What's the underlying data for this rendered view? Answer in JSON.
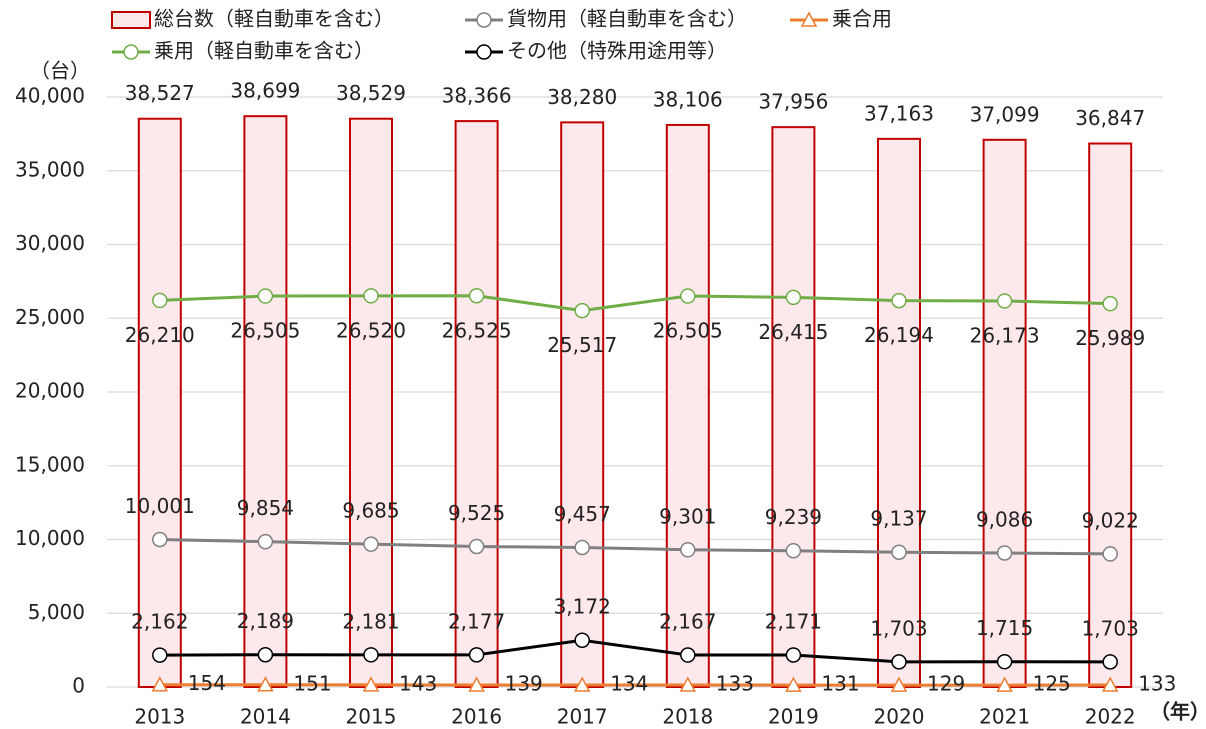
{
  "chart_data": {
    "type": "combo",
    "y_label": "（台）",
    "x_label": "（年）",
    "categories": [
      "2013",
      "2014",
      "2015",
      "2016",
      "2017",
      "2018",
      "2019",
      "2020",
      "2021",
      "2022"
    ],
    "ylim": [
      0,
      40000
    ],
    "yticks": [
      0,
      {
        "value": 5000,
        "label": "5,000"
      },
      {
        "value": 10000,
        "label": "10,000"
      },
      {
        "value": 15000,
        "label": "15,000"
      },
      {
        "value": 20000,
        "label": "20,000"
      },
      {
        "value": 25000,
        "label": "25,000"
      },
      {
        "value": 30000,
        "label": "30,000"
      },
      {
        "value": 35000,
        "label": "35,000"
      },
      {
        "value": 40000,
        "label": "40,000"
      }
    ],
    "grid": true,
    "series": [
      {
        "name": "総台数（軽自動車を含む）",
        "type": "bar",
        "color": "#c00000",
        "fill": "#fde9ec",
        "label_position": "above",
        "values": [
          38527,
          38699,
          38529,
          38366,
          38280,
          38106,
          37956,
          37163,
          37099,
          36847
        ],
        "value_labels": [
          "38,527",
          "38,699",
          "38,529",
          "38,366",
          "38,280",
          "38,106",
          "37,956",
          "37,163",
          "37,099",
          "36,847"
        ]
      },
      {
        "name": "貨物用（軽自動車を含む）",
        "type": "line",
        "marker": "circle",
        "color": "#808080",
        "label_position": "above",
        "values": [
          10001,
          9854,
          9685,
          9525,
          9457,
          9301,
          9239,
          9137,
          9086,
          9022
        ],
        "value_labels": [
          "10,001",
          "9,854",
          "9,685",
          "9,525",
          "9,457",
          "9,301",
          "9,239",
          "9,137",
          "9,086",
          "9,022"
        ]
      },
      {
        "name": "乗合用",
        "type": "line",
        "marker": "triangle",
        "color": "#ed7d31",
        "label_position": "right",
        "values": [
          154,
          151,
          143,
          139,
          134,
          133,
          131,
          129,
          125,
          133
        ]
      },
      {
        "name": "乗用（軽自動車を含む）",
        "type": "line",
        "marker": "circle",
        "color": "#70ad47",
        "label_position": "below",
        "values": [
          26210,
          26505,
          26520,
          26525,
          25517,
          26505,
          26415,
          26194,
          26173,
          25989
        ],
        "value_labels": [
          "26,210",
          "26,505",
          "26,520",
          "26,525",
          "25,517",
          "26,505",
          "26,415",
          "26,194",
          "26,173",
          "25,989"
        ]
      },
      {
        "name": "その他（特殊用途用等）",
        "type": "line",
        "marker": "circle",
        "color": "#000000",
        "label_position": "above",
        "values": [
          2162,
          2189,
          2181,
          2177,
          3172,
          2167,
          2171,
          1703,
          1715,
          1703
        ],
        "value_labels": [
          "2,162",
          "2,189",
          "2,181",
          "2,177",
          "3,172",
          "2,167",
          "2,171",
          "1,703",
          "1,715",
          "1,703"
        ]
      }
    ]
  }
}
